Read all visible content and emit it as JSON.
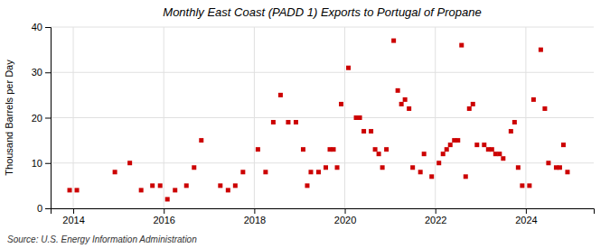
{
  "chart_data": {
    "type": "scatter",
    "title": "Monthly East Coast (PADD 1) Exports to Portugal of Propane",
    "ylabel": "Thousand Barrels per Day",
    "annotations": [
      "Source: U.S. Energy Information Administration"
    ],
    "color": "#cc0000",
    "marker": "square",
    "grid": true,
    "xlim": [
      2013.5,
      2025.5
    ],
    "xticks": [
      2014,
      2016,
      2018,
      2020,
      2022,
      2024
    ],
    "ylim": [
      0,
      40
    ],
    "yticks": [
      0,
      10,
      20,
      30,
      40
    ],
    "x": [
      2013.92,
      2014.08,
      2014.92,
      2015.25,
      2015.5,
      2015.75,
      2015.92,
      2016.08,
      2016.25,
      2016.5,
      2016.67,
      2016.83,
      2017.25,
      2017.42,
      2017.58,
      2017.75,
      2018.08,
      2018.25,
      2018.42,
      2018.58,
      2018.75,
      2018.92,
      2019.08,
      2019.17,
      2019.25,
      2019.42,
      2019.58,
      2019.67,
      2019.75,
      2019.83,
      2019.92,
      2020.08,
      2020.25,
      2020.33,
      2020.42,
      2020.58,
      2020.67,
      2020.75,
      2020.83,
      2020.92,
      2021.08,
      2021.17,
      2021.25,
      2021.33,
      2021.42,
      2021.5,
      2021.67,
      2021.75,
      2021.92,
      2022.08,
      2022.17,
      2022.25,
      2022.33,
      2022.42,
      2022.5,
      2022.58,
      2022.67,
      2022.75,
      2022.83,
      2022.92,
      2023.08,
      2023.17,
      2023.25,
      2023.33,
      2023.42,
      2023.5,
      2023.67,
      2023.75,
      2023.83,
      2023.92,
      2024.08,
      2024.17,
      2024.33,
      2024.42,
      2024.5,
      2024.67,
      2024.75,
      2024.83,
      2024.92
    ],
    "values": [
      4,
      4,
      8,
      10,
      4,
      5,
      5,
      2,
      4,
      5,
      9,
      15,
      5,
      4,
      5,
      8,
      13,
      8,
      19,
      25,
      19,
      19,
      13,
      5,
      8,
      8,
      9,
      13,
      13,
      9,
      23,
      31,
      20,
      20,
      17,
      17,
      13,
      12,
      9,
      13,
      37,
      26,
      23,
      24,
      22,
      9,
      8,
      12,
      7,
      10,
      12,
      13,
      14,
      15,
      15,
      36,
      7,
      22,
      23,
      14,
      14,
      13,
      13,
      12,
      12,
      11,
      17,
      19,
      9,
      5,
      5,
      24,
      35,
      22,
      10,
      9,
      9,
      14,
      8
    ]
  }
}
